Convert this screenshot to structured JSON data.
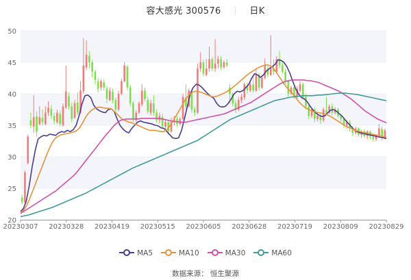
{
  "header": {
    "stock_name": "容大感光",
    "stock_code": "300576",
    "period": "日K"
  },
  "legend": [
    {
      "label": "MA5",
      "color": "#4b3b8f"
    },
    {
      "label": "MA10",
      "color": "#e8913a"
    },
    {
      "label": "MA30",
      "color": "#d24fa8"
    },
    {
      "label": "MA60",
      "color": "#3f9a99"
    }
  ],
  "source": {
    "label": "数据来源：",
    "value": "恒生聚源"
  },
  "colors": {
    "up": "#f07c7c",
    "down": "#7de04a",
    "grid_band": "#f4f5fa",
    "axis": "#999999"
  },
  "chart_data": {
    "type": "candlestick",
    "title": "容大感光 300576 日K",
    "xlabel": "",
    "ylabel": "",
    "ylim": [
      20,
      50
    ],
    "yticks": [
      20,
      25,
      30,
      35,
      40,
      45,
      50
    ],
    "xticks": [
      "20230307",
      "20230328",
      "20230419",
      "20230515",
      "20230605",
      "20230628",
      "20230719",
      "20230809",
      "20230829"
    ],
    "grid": true,
    "legend_position": "bottom",
    "candles": [
      [
        23.5,
        22.8,
        24.0,
        22.5
      ],
      [
        22.8,
        27.5,
        27.8,
        22.6
      ],
      [
        29.0,
        33.2,
        33.5,
        28.8
      ],
      [
        35.8,
        35.0,
        37.0,
        34.5
      ],
      [
        34.8,
        36.3,
        39.8,
        33.8
      ],
      [
        36.4,
        34.0,
        37.2,
        33.2
      ],
      [
        35.2,
        36.3,
        38.0,
        35.0
      ],
      [
        36.2,
        35.5,
        37.5,
        35.0
      ],
      [
        35.2,
        37.0,
        38.0,
        35.0
      ],
      [
        37.0,
        37.8,
        38.8,
        36.5
      ],
      [
        37.6,
        36.5,
        38.2,
        36.0
      ],
      [
        36.5,
        35.7,
        37.0,
        35.2
      ],
      [
        35.5,
        37.0,
        37.5,
        35.2
      ],
      [
        36.8,
        35.2,
        37.3,
        34.8
      ],
      [
        35.0,
        38.0,
        38.5,
        34.8
      ],
      [
        37.8,
        40.4,
        44.5,
        37.6
      ],
      [
        39.6,
        38.0,
        40.2,
        37.5
      ],
      [
        38.0,
        36.0,
        38.6,
        35.5
      ],
      [
        36.2,
        38.5,
        39.0,
        36.0
      ],
      [
        38.6,
        37.0,
        40.2,
        36.6
      ],
      [
        37.0,
        40.5,
        42.0,
        36.8
      ],
      [
        40.4,
        44.5,
        48.8,
        40.0
      ],
      [
        44.2,
        46.2,
        48.5,
        43.8
      ],
      [
        46.0,
        45.0,
        46.8,
        44.0
      ],
      [
        45.0,
        43.5,
        45.4,
        42.6
      ],
      [
        43.5,
        42.2,
        43.8,
        41.5
      ],
      [
        42.0,
        40.8,
        42.5,
        40.2
      ],
      [
        41.0,
        42.0,
        42.3,
        40.5
      ],
      [
        41.8,
        41.0,
        42.3,
        40.5
      ],
      [
        40.8,
        39.2,
        41.2,
        38.5
      ],
      [
        39.0,
        40.5,
        41.0,
        38.8
      ],
      [
        40.3,
        39.0,
        40.8,
        38.5
      ],
      [
        39.0,
        37.5,
        39.4,
        37.0
      ],
      [
        37.5,
        40.0,
        40.5,
        37.2
      ],
      [
        40.0,
        42.0,
        42.4,
        39.8
      ],
      [
        42.0,
        44.5,
        45.0,
        41.8
      ],
      [
        44.3,
        41.0,
        44.6,
        40.5
      ],
      [
        41.0,
        38.5,
        41.4,
        38.0
      ],
      [
        38.5,
        36.0,
        38.8,
        35.5
      ],
      [
        35.8,
        37.0,
        37.4,
        35.5
      ],
      [
        37.0,
        38.5,
        38.8,
        36.8
      ],
      [
        38.3,
        40.5,
        41.5,
        38.0
      ],
      [
        40.5,
        39.2,
        41.0,
        38.8
      ],
      [
        39.0,
        37.2,
        39.5,
        36.8
      ],
      [
        37.0,
        38.5,
        39.0,
        36.6
      ],
      [
        38.5,
        37.0,
        39.8,
        36.5
      ],
      [
        37.0,
        35.8,
        37.5,
        35.4
      ],
      [
        35.8,
        36.5,
        37.0,
        35.3
      ],
      [
        36.3,
        34.8,
        36.8,
        34.4
      ],
      [
        34.8,
        35.5,
        36.0,
        34.3
      ],
      [
        35.5,
        34.0,
        35.9,
        33.5
      ],
      [
        34.0,
        35.5,
        36.2,
        33.8
      ],
      [
        35.5,
        36.0,
        36.5,
        35.0
      ],
      [
        36.0,
        35.2,
        36.5,
        34.8
      ],
      [
        35.2,
        36.0,
        36.3,
        35.0
      ],
      [
        36.0,
        39.5,
        40.0,
        35.8
      ],
      [
        39.3,
        38.0,
        41.5,
        37.5
      ],
      [
        38.0,
        40.5,
        40.8,
        37.8
      ],
      [
        40.4,
        37.5,
        40.8,
        37.0
      ],
      [
        37.5,
        37.0,
        38.0,
        36.5
      ],
      [
        37.0,
        44.0,
        44.8,
        36.8
      ],
      [
        44.0,
        45.0,
        46.6,
        43.5
      ],
      [
        45.0,
        43.2,
        45.4,
        42.8
      ],
      [
        43.0,
        44.0,
        45.5,
        42.8
      ],
      [
        44.0,
        45.5,
        47.5,
        43.5
      ],
      [
        45.5,
        44.0,
        45.8,
        43.6
      ],
      [
        44.0,
        44.8,
        48.7,
        43.5
      ],
      [
        44.8,
        45.5,
        46.0,
        44.0
      ],
      [
        45.5,
        44.2,
        46.0,
        43.8
      ],
      [
        44.2,
        45.0,
        45.3,
        44.0
      ],
      [
        45.0,
        44.5,
        45.5,
        44.2
      ],
      [
        41.0,
        40.0,
        41.5,
        38.5
      ],
      [
        40.0,
        38.5,
        40.2,
        38.0
      ],
      [
        38.5,
        37.5,
        39.0,
        37.0
      ],
      [
        37.5,
        39.0,
        39.5,
        37.2
      ],
      [
        39.0,
        39.5,
        40.0,
        38.5
      ],
      [
        39.4,
        41.5,
        41.8,
        39.0
      ],
      [
        41.3,
        40.5,
        41.8,
        40.0
      ],
      [
        40.5,
        41.5,
        42.0,
        40.2
      ],
      [
        41.5,
        40.5,
        43.0,
        40.2
      ],
      [
        40.5,
        43.0,
        44.0,
        40.3
      ],
      [
        43.0,
        41.0,
        43.3,
        40.5
      ],
      [
        41.0,
        42.5,
        43.0,
        40.8
      ],
      [
        42.5,
        44.5,
        45.6,
        42.3
      ],
      [
        44.0,
        43.0,
        44.5,
        42.6
      ],
      [
        43.0,
        44.0,
        49.3,
        42.8
      ],
      [
        44.0,
        43.5,
        45.5,
        43.0
      ],
      [
        43.5,
        45.5,
        46.0,
        43.2
      ],
      [
        45.5,
        44.5,
        46.8,
        44.0
      ],
      [
        44.5,
        43.5,
        45.2,
        43.2
      ],
      [
        43.5,
        42.0,
        44.0,
        41.5
      ],
      [
        42.0,
        40.0,
        42.2,
        39.5
      ],
      [
        40.0,
        41.0,
        41.3,
        39.8
      ],
      [
        41.0,
        39.5,
        41.5,
        39.2
      ],
      [
        39.5,
        40.8,
        41.2,
        39.3
      ],
      [
        40.5,
        41.5,
        42.0,
        40.2
      ],
      [
        41.5,
        39.5,
        41.8,
        39.0
      ],
      [
        39.5,
        38.0,
        40.0,
        37.5
      ],
      [
        38.0,
        36.5,
        38.3,
        36.0
      ],
      [
        36.5,
        37.5,
        37.8,
        36.2
      ],
      [
        37.5,
        36.0,
        37.8,
        35.5
      ],
      [
        36.0,
        36.5,
        37.0,
        35.6
      ],
      [
        36.4,
        35.8,
        36.8,
        35.2
      ],
      [
        35.8,
        37.5,
        37.8,
        35.5
      ],
      [
        37.4,
        37.0,
        39.5,
        36.8
      ],
      [
        37.0,
        38.0,
        38.3,
        36.8
      ],
      [
        38.0,
        37.0,
        38.5,
        36.6
      ],
      [
        37.0,
        37.5,
        37.9,
        36.7
      ],
      [
        37.5,
        36.5,
        37.8,
        36.2
      ],
      [
        36.5,
        36.0,
        36.8,
        35.5
      ],
      [
        36.0,
        35.0,
        36.2,
        34.6
      ],
      [
        35.0,
        35.5,
        35.8,
        34.5
      ],
      [
        35.4,
        34.5,
        35.8,
        34.0
      ],
      [
        34.5,
        33.8,
        34.8,
        33.3
      ],
      [
        33.8,
        34.5,
        34.8,
        33.5
      ],
      [
        34.5,
        33.5,
        34.7,
        33.2
      ],
      [
        33.5,
        34.0,
        34.3,
        33.0
      ],
      [
        34.0,
        33.3,
        34.4,
        33.0
      ],
      [
        33.3,
        34.0,
        34.2,
        32.8
      ],
      [
        34.0,
        33.2,
        34.2,
        32.8
      ],
      [
        33.2,
        32.8,
        33.5,
        32.4
      ],
      [
        32.8,
        33.3,
        33.6,
        32.5
      ],
      [
        33.3,
        34.5,
        35.2,
        33.0
      ],
      [
        34.4,
        33.0,
        34.8,
        32.6
      ],
      [
        33.0,
        34.2,
        34.5,
        32.8
      ]
    ],
    "ma_series": [
      {
        "name": "MA5",
        "values": [
          21.3,
          21.8,
          23.0,
          25.5,
          28.5,
          31.0,
          32.8,
          33.2,
          33.4,
          33.3,
          33.6,
          33.5,
          33.4,
          33.8,
          34.0,
          33.9,
          34.2,
          34.0,
          34.3,
          35.0,
          36.5,
          38.4,
          39.7,
          39.8,
          39.4,
          38.2,
          37.6,
          37.3,
          37.1,
          37.0,
          37.5,
          37.6,
          37.2,
          36.0,
          35.0,
          34.4,
          34.0,
          33.8,
          34.5,
          35.0,
          35.5,
          35.7,
          35.5,
          35.4,
          35.3,
          35.2,
          35.0,
          34.9,
          34.6,
          34.5,
          34.0,
          33.5,
          33.0,
          32.9,
          33.0,
          34.2,
          36.0,
          38.0,
          40.0,
          41.0,
          41.5,
          41.4,
          41.0,
          40.5,
          40.0,
          39.6,
          39.3,
          38.5,
          38.0,
          37.9,
          38.0,
          38.5,
          39.2,
          40.0,
          40.4,
          40.3,
          40.5,
          41.0,
          41.5,
          42.5,
          43.2,
          43.0,
          42.6,
          43.0,
          43.6,
          44.0,
          44.3,
          44.7,
          45.4,
          45.3,
          45.0,
          44.3,
          43.3,
          42.0,
          40.8,
          40.0,
          39.4,
          39.2,
          38.7,
          38.0,
          37.4,
          36.9,
          36.6,
          36.4,
          36.5,
          37.0,
          37.4,
          37.5,
          37.2,
          36.8,
          36.4,
          35.8,
          35.3,
          34.8,
          34.3,
          34.0,
          33.8,
          33.7,
          33.6,
          33.5,
          33.4,
          33.3,
          33.2,
          33.1,
          33.0,
          32.9
        ],
        "color": "#4b3b8f"
      },
      {
        "name": "MA10",
        "values": [
          21.2,
          21.5,
          22.2,
          23.2,
          24.4,
          25.6,
          26.8,
          28.0,
          29.2,
          30.4,
          31.5,
          32.4,
          33.0,
          33.3,
          33.5,
          33.6,
          33.7,
          33.8,
          33.9,
          34.1,
          34.5,
          35.2,
          36.1,
          36.8,
          37.3,
          37.6,
          37.8,
          37.9,
          37.8,
          37.7,
          37.7,
          37.6,
          37.2,
          36.8,
          36.3,
          35.9,
          35.7,
          35.5,
          35.4,
          35.2,
          35.0,
          34.8,
          34.6,
          34.4,
          34.2,
          34.2,
          34.2,
          34.1,
          34.0,
          34.0,
          34.3,
          34.9,
          35.6,
          36.4,
          37.2,
          38.0,
          38.8,
          39.5,
          40.0,
          40.3,
          40.4,
          40.3,
          40.2,
          40.0,
          39.8,
          39.6,
          39.5,
          39.6,
          39.8,
          40.0,
          40.2,
          40.5,
          40.8,
          41.2,
          41.6,
          42.0,
          42.4,
          42.8,
          43.2,
          43.5,
          43.8,
          44.1,
          44.3,
          44.5,
          44.6,
          44.5,
          44.2,
          43.7,
          43.0,
          42.3,
          41.6,
          41.0,
          40.5,
          40.0,
          39.4,
          38.8,
          38.3,
          37.9,
          37.6,
          37.4,
          37.2,
          37.1,
          37.0,
          36.9,
          36.8,
          36.6,
          36.4,
          36.1,
          35.8,
          35.5,
          35.2,
          34.9,
          34.7,
          34.5,
          34.3,
          34.1,
          34.0,
          33.9,
          33.8,
          33.7,
          33.6,
          33.5,
          33.4,
          33.3,
          33.2,
          33.1
        ],
        "color": "#e8913a"
      },
      {
        "name": "MA30",
        "values": [
          21.0,
          21.3,
          21.6,
          21.9,
          22.2,
          22.5,
          22.8,
          23.1,
          23.4,
          23.7,
          24.0,
          24.3,
          24.6,
          25.0,
          25.4,
          25.8,
          26.2,
          26.6,
          27.0,
          27.5,
          28.1,
          28.7,
          29.3,
          29.9,
          30.5,
          31.1,
          31.7,
          32.3,
          32.9,
          33.5,
          34.0,
          34.6,
          35.1,
          35.5,
          35.8,
          35.9,
          36.0,
          36.0,
          36.0,
          36.0,
          36.0,
          36.1,
          36.1,
          36.1,
          36.1,
          36.1,
          36.1,
          36.1,
          36.0,
          35.9,
          35.8,
          35.7,
          35.6,
          35.6,
          35.5,
          35.5,
          35.5,
          35.6,
          35.7,
          35.8,
          35.9,
          36.0,
          36.1,
          36.2,
          36.3,
          36.4,
          36.5,
          36.6,
          36.7,
          36.8,
          37.0,
          37.2,
          37.4,
          37.6,
          37.8,
          38.0,
          38.2,
          38.4,
          38.6,
          38.9,
          39.2,
          39.5,
          39.8,
          40.1,
          40.4,
          40.7,
          41.0,
          41.3,
          41.6,
          41.8,
          42.0,
          42.1,
          42.2,
          42.2,
          42.2,
          42.2,
          42.2,
          42.1,
          42.1,
          42.0,
          41.9,
          41.8,
          41.6,
          41.4,
          41.2,
          41.0,
          40.8,
          40.6,
          40.4,
          40.1,
          39.8,
          39.5,
          39.2,
          38.8,
          38.4,
          38.0,
          37.6,
          37.2,
          36.9,
          36.6,
          36.3,
          36.0,
          35.8,
          35.6,
          35.4
        ],
        "color": "#d24fa8"
      },
      {
        "name": "MA60",
        "values": [
          20.5,
          20.6,
          20.7,
          20.8,
          20.95,
          21.1,
          21.25,
          21.4,
          21.55,
          21.7,
          21.85,
          22.0,
          22.2,
          22.4,
          22.6,
          22.8,
          23.0,
          23.2,
          23.4,
          23.6,
          23.8,
          24.0,
          24.2,
          24.45,
          24.7,
          24.95,
          25.2,
          25.45,
          25.7,
          25.95,
          26.2,
          26.45,
          26.7,
          26.95,
          27.2,
          27.45,
          27.7,
          27.95,
          28.2,
          28.4,
          28.6,
          28.8,
          29.0,
          29.2,
          29.4,
          29.6,
          29.8,
          30.0,
          30.2,
          30.4,
          30.6,
          30.8,
          31.0,
          31.2,
          31.4,
          31.6,
          31.8,
          32.0,
          32.2,
          32.4,
          32.6,
          32.9,
          33.2,
          33.5,
          33.8,
          34.1,
          34.4,
          34.7,
          35.0,
          35.3,
          35.6,
          35.9,
          36.1,
          36.3,
          36.5,
          36.7,
          36.9,
          37.1,
          37.3,
          37.5,
          37.7,
          37.9,
          38.1,
          38.3,
          38.5,
          38.7,
          38.9,
          39.0,
          39.1,
          39.2,
          39.3,
          39.4,
          39.5,
          39.55,
          39.6,
          39.65,
          39.7,
          39.7,
          39.7,
          39.7,
          39.75,
          39.8,
          39.8,
          39.85,
          39.9,
          39.95,
          40.0,
          40.05,
          40.1,
          40.1,
          40.1,
          40.05,
          40.0,
          39.95,
          39.9,
          39.8,
          39.7,
          39.6,
          39.5,
          39.4,
          39.3,
          39.2,
          39.1,
          39.0,
          38.9
        ],
        "color": "#3f9a99"
      }
    ]
  }
}
